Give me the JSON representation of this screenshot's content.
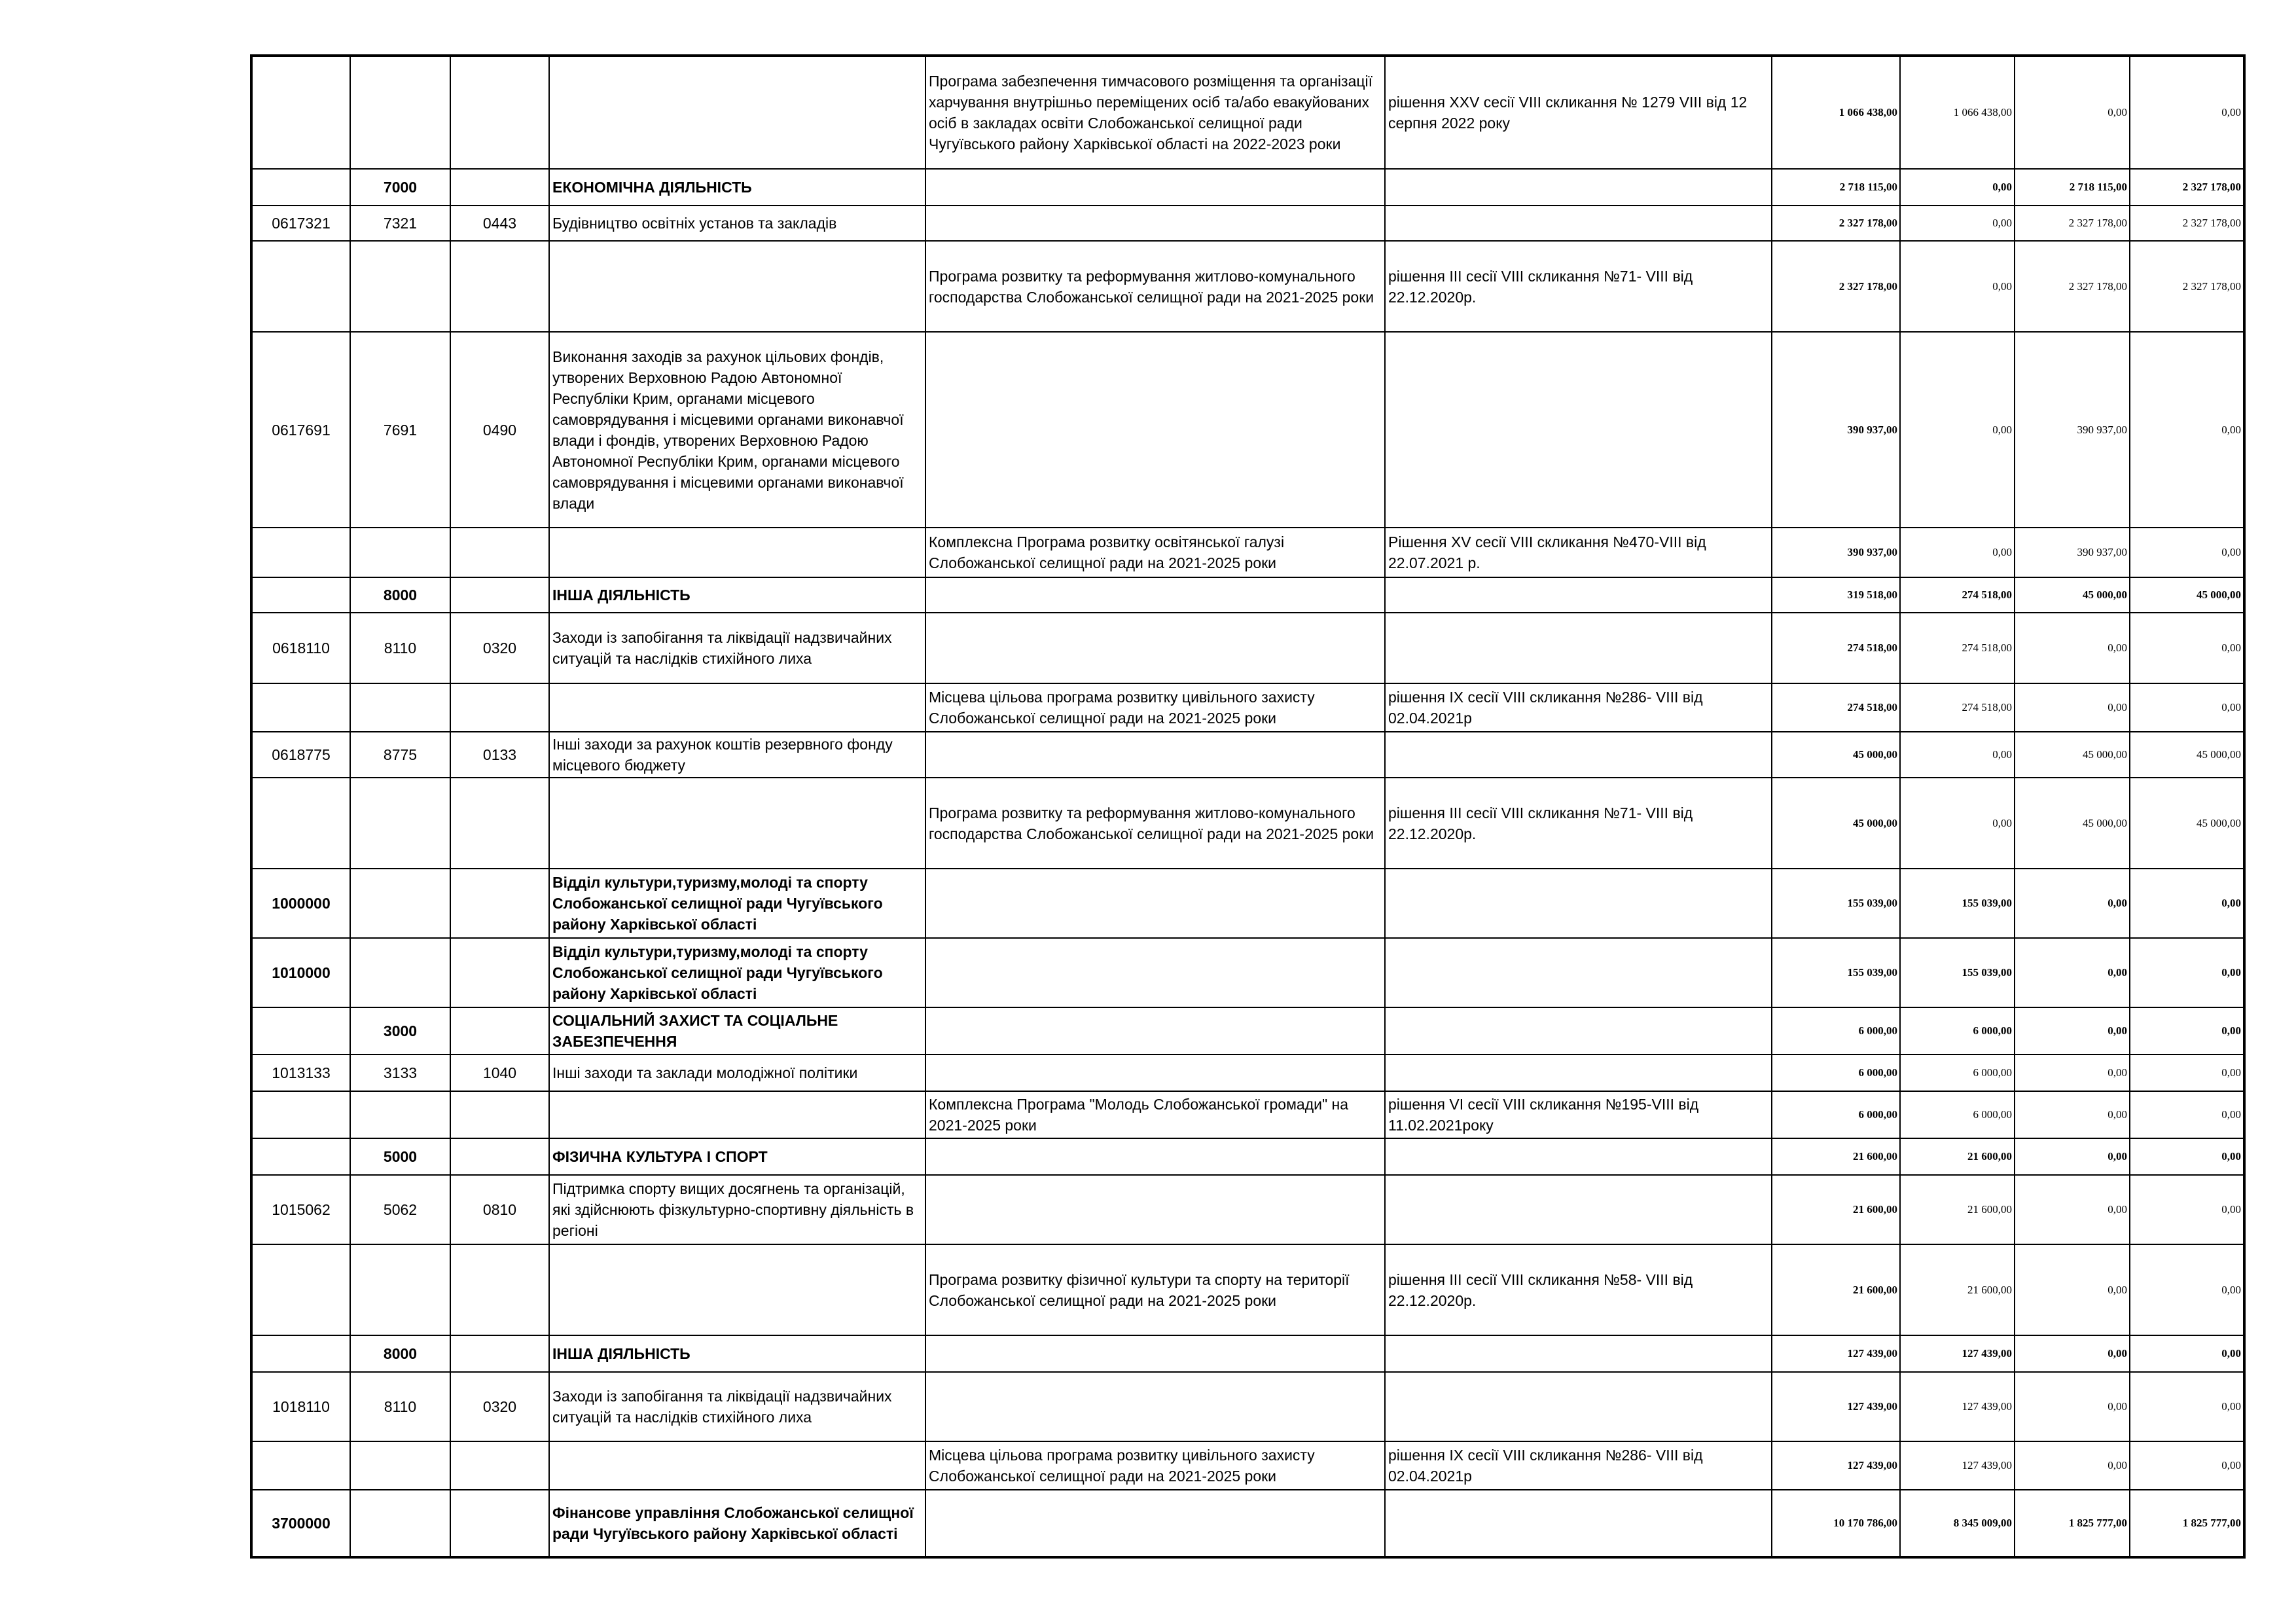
{
  "table": {
    "rows": [
      [
        null,
        null,
        null,
        null,
        "Програма забезпечення тимчасового розміщення  та організації харчування внутрішньо переміщених осіб та/або евакуйованих осіб в закладах освіти Слобожанської селищної ради Чугуївського району Харківської області на 2022-2023 роки",
        "  рішення XXV сесії  VIII скликання   № 1279   VIII від 12 серпня 2022 року",
        "1 066 438,00",
        "1 066 438,00",
        "0,00",
        "0,00"
      ],
      [
        null,
        "7000",
        null,
        "ЕКОНОМІЧНА ДІЯЛЬНІСТЬ",
        null,
        null,
        "2 718 115,00",
        "0,00",
        "2 718 115,00",
        "2 327 178,00"
      ],
      [
        "0617321",
        "7321",
        "0443",
        "Будівництво освітніх установ та закладів",
        null,
        null,
        "2 327 178,00",
        "0,00",
        "2 327 178,00",
        "2 327 178,00"
      ],
      [
        null,
        null,
        null,
        null,
        "Програма розвитку та реформування житлово-комунального господарства Слобожанської селищної ради на 2021-2025 роки",
        "рішення ІІІ сесії VIII скликання №71- VIII від 22.12.2020р.",
        "2 327 178,00",
        "0,00",
        "2 327 178,00",
        "2 327 178,00"
      ],
      [
        "0617691",
        "7691",
        "0490",
        "Виконання заходів за рахунок цільових фондів, утворених Верховною Радою Автономної Республіки Крим, органами місцевого самоврядування і місцевими органами виконавчої влади і фондів, утворених Верховною Радою Автономної Республіки Крим, органами місцевого самоврядування і місцевими органами виконавчої влади",
        null,
        null,
        "390 937,00",
        "0,00",
        "390 937,00",
        "0,00"
      ],
      [
        null,
        null,
        null,
        null,
        "Комплексна Програма розвитку освітянської галузі Слобожанської селищної ради на 2021-2025 роки",
        "Рішення XV сесії VIII скликання №470-VIII від 22.07.2021 р.",
        "390 937,00",
        "0,00",
        "390 937,00",
        "0,00"
      ],
      [
        null,
        "8000",
        null,
        "ІНША ДІЯЛЬНІСТЬ",
        null,
        null,
        "319 518,00",
        "274 518,00",
        "45 000,00",
        "45 000,00"
      ],
      [
        "0618110",
        "8110",
        "0320",
        "Заходи із запобігання та ліквідації надзвичайних ситуацій та наслідків стихійного лиха",
        null,
        null,
        "274 518,00",
        "274 518,00",
        "0,00",
        "0,00"
      ],
      [
        null,
        null,
        null,
        null,
        "Місцева цільова програма розвитку цивільного захисту Слобожанської селищної ради на 2021-2025 роки",
        "рішення ІХ сесії VIII скликання №286- VIII від 02.04.2021р",
        "274 518,00",
        "274 518,00",
        "0,00",
        "0,00"
      ],
      [
        "0618775",
        "8775",
        "0133",
        "Інші заходи за рахунок коштів резервного фонду місцевого бюджету",
        null,
        null,
        "45 000,00",
        "0,00",
        "45 000,00",
        "45 000,00"
      ],
      [
        null,
        null,
        null,
        null,
        "Програма розвитку та реформування житлово-комунального господарства Слобожанської селищної ради на 2021-2025 роки",
        "рішення ІІІ сесії VIII скликання №71- VIII від 22.12.2020р.",
        "45 000,00",
        "0,00",
        "45 000,00",
        "45 000,00"
      ],
      [
        "1000000",
        null,
        null,
        "Відділ культури,туризму,молоді та спорту Слобожанської селищної ради Чугуївського району Харківської області",
        null,
        null,
        "155 039,00",
        "155 039,00",
        "0,00",
        "0,00"
      ],
      [
        "1010000",
        null,
        null,
        "Відділ культури,туризму,молоді та спорту Слобожанської селищної ради Чугуївського району Харківської області",
        null,
        null,
        "155 039,00",
        "155 039,00",
        "0,00",
        "0,00"
      ],
      [
        null,
        "3000",
        null,
        "СОЦІАЛЬНИЙ ЗАХИСТ ТА СОЦІАЛЬНЕ ЗАБЕЗПЕЧЕННЯ",
        null,
        null,
        "6 000,00",
        "6 000,00",
        "0,00",
        "0,00"
      ],
      [
        "1013133",
        "3133",
        "1040",
        "Інші заходи та заклади молодіжної політики",
        null,
        null,
        "6 000,00",
        "6 000,00",
        "0,00",
        "0,00"
      ],
      [
        null,
        null,
        null,
        null,
        "Комплексна Програма \"Молодь Слобожанської громади\" на 2021-2025 роки",
        "рішення VI сесії VIII скликання №195-VIII від 11.02.2021року",
        "6 000,00",
        "6 000,00",
        "0,00",
        "0,00"
      ],
      [
        null,
        "5000",
        null,
        "ФІЗИЧНА КУЛЬТУРА І СПОРТ",
        null,
        null,
        "21 600,00",
        "21 600,00",
        "0,00",
        "0,00"
      ],
      [
        "1015062",
        "5062",
        "0810",
        "Підтримка спорту вищих досягнень та організацій, які здійснюють фізкультурно-спортивну діяльність в регіоні",
        null,
        null,
        "21 600,00",
        "21 600,00",
        "0,00",
        "0,00"
      ],
      [
        null,
        null,
        null,
        null,
        "Програма розвитку фізичної культури та спорту на території Слобожанської селищної ради на 2021-2025 роки",
        "рішення ІІІ сесії VIII скликання №58- VIII від 22.12.2020р.",
        "21 600,00",
        "21 600,00",
        "0,00",
        "0,00"
      ],
      [
        null,
        "8000",
        null,
        "ІНША ДІЯЛЬНІСТЬ",
        null,
        null,
        "127 439,00",
        "127 439,00",
        "0,00",
        "0,00"
      ],
      [
        "1018110",
        "8110",
        "0320",
        "Заходи із запобігання та ліквідації надзвичайних ситуацій та наслідків стихійного лиха",
        null,
        null,
        "127 439,00",
        "127 439,00",
        "0,00",
        "0,00"
      ],
      [
        null,
        null,
        null,
        null,
        "Місцева цільова програма розвитку цивільного захисту Слобожанської селищної ради на 2021-2025 роки",
        "рішення ІХ сесії VIII скликання №286- VIII від 02.04.2021р",
        "127 439,00",
        "127 439,00",
        "0,00",
        "0,00"
      ],
      [
        "3700000",
        null,
        null,
        "Фінансове управління Слобожанської селищної ради Чугуївського району Харківської області",
        null,
        null,
        "10 170 786,00",
        "8 345 009,00",
        "1 825 777,00",
        "1 825 777,00"
      ]
    ]
  }
}
